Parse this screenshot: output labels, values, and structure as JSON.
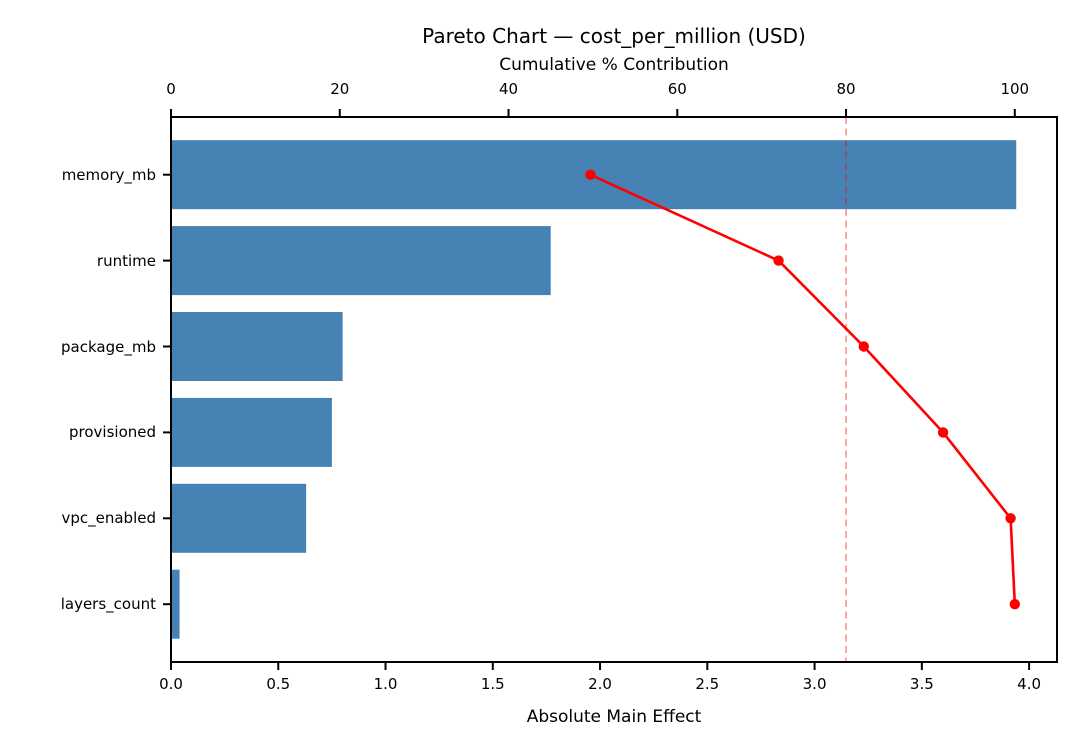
{
  "chart_data": {
    "type": "bar+line",
    "subtype": "pareto",
    "title": "Pareto Chart — cost_per_million (USD)",
    "orientation": "horizontal",
    "categories": [
      "memory_mb",
      "runtime",
      "package_mb",
      "provisioned",
      "vpc_enabled",
      "layers_count"
    ],
    "bar_values": [
      3.94,
      1.77,
      0.8,
      0.75,
      0.63,
      0.04
    ],
    "cumulative_pct": [
      49.7,
      72.0,
      82.1,
      91.5,
      99.5,
      100.0
    ],
    "top_axis": {
      "label": "Cumulative % Contribution",
      "tick_values": [
        0,
        20,
        40,
        60,
        80,
        100
      ],
      "tick_labels": [
        "0",
        "20",
        "40",
        "60",
        "80",
        "100"
      ],
      "lim": [
        0,
        105
      ]
    },
    "bottom_axis": {
      "label": "Absolute Main Effect",
      "tick_values": [
        0,
        0.5,
        1.0,
        1.5,
        2.0,
        2.5,
        3.0,
        3.5,
        4.0
      ],
      "tick_labels": [
        "0.0",
        "0.5",
        "1.0",
        "1.5",
        "2.0",
        "2.5",
        "3.0",
        "3.5",
        "4.0"
      ],
      "lim": [
        0,
        4.13
      ]
    },
    "threshold": {
      "value_pct": 80,
      "style": "dashed"
    },
    "legend": "none",
    "grid": "off",
    "colors": {
      "bar": "#4682b4",
      "line": "#ff0000",
      "marker": "#ff0000",
      "threshold": "#ff0000",
      "spine": "#000000",
      "text": "#000000",
      "background": "#ffffff"
    }
  }
}
